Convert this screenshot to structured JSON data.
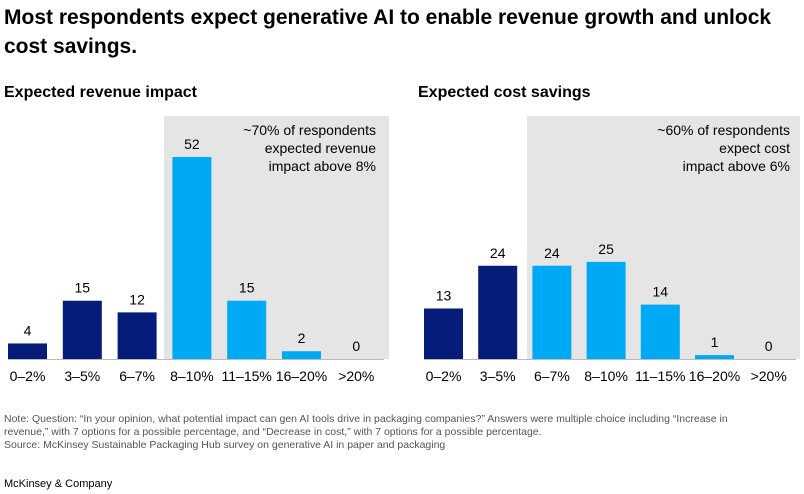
{
  "title": "Most respondents expect generative AI to enable revenue growth and unlock cost savings.",
  "colors": {
    "dark": "#051C7A",
    "light": "#00A9F4",
    "shade": "#E5E5E5",
    "axis": "#BBBBBB"
  },
  "chart_data": [
    {
      "type": "bar",
      "title": "Expected revenue impact",
      "categories": [
        "0–2%",
        "3–5%",
        "6–7%",
        "8–10%",
        "11–15%",
        "16–20%",
        ">20%"
      ],
      "values": [
        4,
        15,
        12,
        52,
        15,
        2,
        0
      ],
      "colors": [
        "dark",
        "dark",
        "dark",
        "light",
        "light",
        "light",
        "light"
      ],
      "ylim": [
        0,
        52
      ],
      "grid": false,
      "annotation": [
        "~70% of respondents",
        "expected revenue",
        "impact above 8%"
      ]
    },
    {
      "type": "bar",
      "title": "Expected cost savings",
      "categories": [
        "0–2%",
        "3–5%",
        "6–7%",
        "8–10%",
        "11–15%",
        "16–20%",
        ">20%"
      ],
      "values": [
        13,
        24,
        24,
        25,
        14,
        1,
        0
      ],
      "colors": [
        "dark",
        "dark",
        "light",
        "light",
        "light",
        "light",
        "light"
      ],
      "ylim": [
        0,
        52
      ],
      "grid": false,
      "annotation": [
        "~60% of respondents",
        "expect cost",
        "impact above 6%"
      ]
    }
  ],
  "note": {
    "line1": "Note: Question: “In your opinion, what potential impact can gen AI tools drive in packaging companies?” Answers were multiple choice including “Increase in",
    "line2": "revenue,” with 7 options for a possible percentage, and “Decrease in cost,” with 7 options for a possible percentage.",
    "source": "Source: McKinsey Sustainable Packaging Hub survey on generative AI in paper and packaging"
  },
  "brand": "McKinsey & Company"
}
